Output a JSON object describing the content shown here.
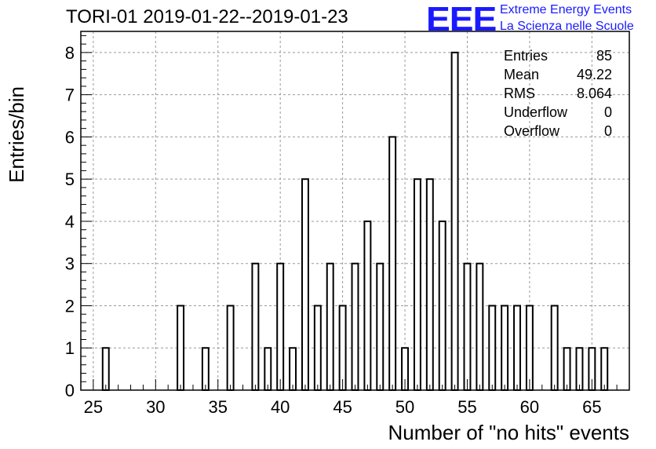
{
  "header": {
    "title": "TORI-01 2019-01-22--2019-01-23",
    "logo_mark": "EEE",
    "logo_line1": "Extreme Energy Events",
    "logo_line2": "La Scienza nelle Scuole"
  },
  "stats": [
    {
      "label": "Entries",
      "value": "85"
    },
    {
      "label": "Mean",
      "value": "49.22"
    },
    {
      "label": "RMS",
      "value": "8.064"
    },
    {
      "label": "Underflow",
      "value": "0"
    },
    {
      "label": "Overflow",
      "value": "0"
    }
  ],
  "colors": {
    "logo": "#1a1aff",
    "grid": "#999999",
    "axis": "#000000",
    "bar_fill": "#ffffff",
    "bar_stroke": "#000000"
  },
  "chart_data": {
    "type": "bar",
    "title": "TORI-01 2019-01-22--2019-01-23",
    "xlabel": "Number of \"no hits\" events",
    "ylabel": "Entries/bin",
    "xlim": [
      24,
      68
    ],
    "ylim": [
      0,
      8.5
    ],
    "bin_width": 0.5,
    "grid": true,
    "x_ticks": [
      25,
      30,
      35,
      40,
      45,
      50,
      55,
      60,
      65
    ],
    "y_ticks": [
      0,
      1,
      2,
      3,
      4,
      5,
      6,
      7,
      8
    ],
    "bins": [
      {
        "x": 26,
        "count": 1
      },
      {
        "x": 32,
        "count": 2
      },
      {
        "x": 34,
        "count": 1
      },
      {
        "x": 36,
        "count": 2
      },
      {
        "x": 38,
        "count": 3
      },
      {
        "x": 39,
        "count": 1
      },
      {
        "x": 40,
        "count": 3
      },
      {
        "x": 41,
        "count": 1
      },
      {
        "x": 42,
        "count": 5
      },
      {
        "x": 43,
        "count": 2
      },
      {
        "x": 44,
        "count": 3
      },
      {
        "x": 45,
        "count": 2
      },
      {
        "x": 46,
        "count": 3
      },
      {
        "x": 47,
        "count": 4
      },
      {
        "x": 48,
        "count": 3
      },
      {
        "x": 49,
        "count": 6
      },
      {
        "x": 50,
        "count": 1
      },
      {
        "x": 51,
        "count": 5
      },
      {
        "x": 52,
        "count": 5
      },
      {
        "x": 53,
        "count": 4
      },
      {
        "x": 54,
        "count": 8
      },
      {
        "x": 55,
        "count": 3
      },
      {
        "x": 56,
        "count": 3
      },
      {
        "x": 57,
        "count": 2
      },
      {
        "x": 58,
        "count": 2
      },
      {
        "x": 59,
        "count": 2
      },
      {
        "x": 60,
        "count": 2
      },
      {
        "x": 62,
        "count": 2
      },
      {
        "x": 63,
        "count": 1
      },
      {
        "x": 64,
        "count": 1
      },
      {
        "x": 65,
        "count": 1
      },
      {
        "x": 66,
        "count": 1
      }
    ]
  }
}
